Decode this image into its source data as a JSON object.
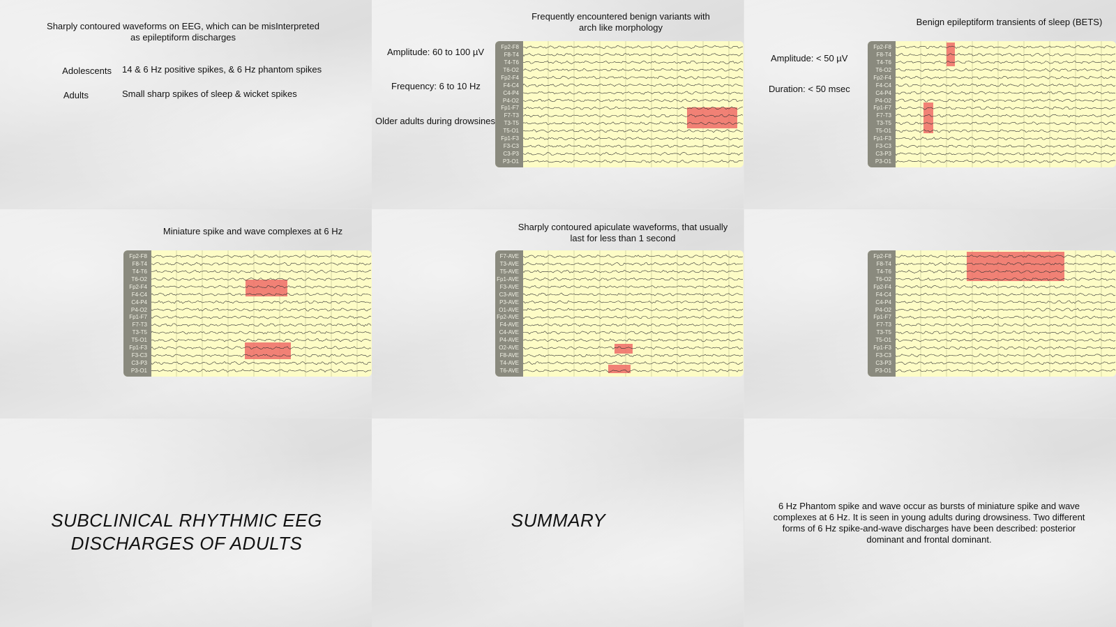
{
  "panels": {
    "intro": {
      "title": "Sharply contoured waveforms on EEG, which can be misInterpreted as epileptiform discharges",
      "rows": [
        {
          "group": "Adolescents",
          "text": "14 & 6 Hz positive spikes, & 6 Hz phantom spikes"
        },
        {
          "group": "Adults",
          "text": "Small sharp spikes of sleep & wicket spikes"
        }
      ]
    },
    "benign_variants": {
      "title": "Frequently encountered benign variants with arch like morphology",
      "facts": [
        "Amplitude: 60 to 100 µV",
        "Frequency: 6 to 10 Hz",
        "Older adults during drowsiness"
      ]
    },
    "bets": {
      "title": "Benign epileptiform transients of sleep (BETS)",
      "facts": [
        "Amplitude: < 50 µV",
        "Duration: < 50 msec"
      ]
    },
    "miniature": {
      "title": "Miniature spike and wave complexes at 6 Hz"
    },
    "apiculate": {
      "title": "Sharply contoured apiculate waveforms, that usually last for less than 1 second"
    },
    "rhythmic": {
      "title": ""
    },
    "subclinical": {
      "title": "SUBCLINICAL RHYTHMIC EEG DISCHARGES OF ADULTS"
    },
    "summary": {
      "title": "SUMMARY"
    },
    "phantom": {
      "text": "6 Hz Phantom spike and wave occur as bursts of miniature spike and wave complexes at 6 Hz. It is seen in young adults during drowsiness. Two different forms of 6 Hz spike-and-wave discharges have been described: posterior dominant and frontal dominant."
    }
  },
  "eeg_montages": {
    "bipolar": [
      "Fp2-F8",
      "F8-T4",
      "T4-T6",
      "T6-O2",
      "Fp2-F4",
      "F4-C4",
      "C4-P4",
      "P4-O2",
      "Fp1-F7",
      "F7-T3",
      "T3-T5",
      "T5-O1",
      "Fp1-F3",
      "F3-C3",
      "C3-P3",
      "P3-O1"
    ],
    "average": [
      "F7-AVE",
      "T3-AVE",
      "T5-AVE",
      "Fp1-AVE",
      "F3-AVE",
      "C3-AVE",
      "P3-AVE",
      "O1-AVE",
      "Fp2-AVE",
      "F4-AVE",
      "C4-AVE",
      "P4-AVE",
      "O2-AVE",
      "F8-AVE",
      "T4-AVE",
      "T6-AVE"
    ]
  },
  "colors": {
    "trace_background": "#fdfcc6",
    "label_column": "#8a8a7e",
    "highlight": "#ee6b66",
    "trace": "#333333"
  }
}
